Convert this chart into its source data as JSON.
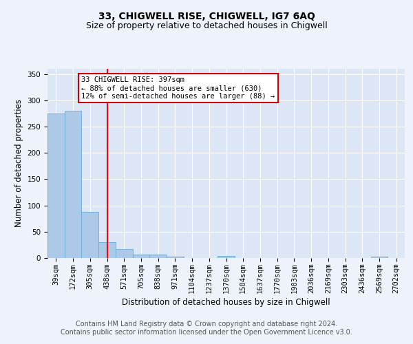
{
  "title": "33, CHIGWELL RISE, CHIGWELL, IG7 6AQ",
  "subtitle": "Size of property relative to detached houses in Chigwell",
  "xlabel": "Distribution of detached houses by size in Chigwell",
  "ylabel": "Number of detached properties",
  "categories": [
    "39sqm",
    "172sqm",
    "305sqm",
    "438sqm",
    "571sqm",
    "705sqm",
    "838sqm",
    "971sqm",
    "1104sqm",
    "1237sqm",
    "1370sqm",
    "1504sqm",
    "1637sqm",
    "1770sqm",
    "1903sqm",
    "2036sqm",
    "2169sqm",
    "2303sqm",
    "2436sqm",
    "2569sqm",
    "2702sqm"
  ],
  "values": [
    275,
    280,
    88,
    30,
    17,
    7,
    6,
    3,
    0,
    0,
    4,
    0,
    0,
    0,
    0,
    0,
    0,
    0,
    0,
    2,
    0
  ],
  "bar_color": "#adc9e8",
  "bar_edge_color": "#6aaad4",
  "red_line_x": 3.0,
  "annotation_text": "33 CHIGWELL RISE: 397sqm\n← 88% of detached houses are smaller (630)\n12% of semi-detached houses are larger (88) →",
  "annotation_box_color": "#ffffff",
  "annotation_box_edge_color": "#cc0000",
  "footer_line1": "Contains HM Land Registry data © Crown copyright and database right 2024.",
  "footer_line2": "Contains public sector information licensed under the Open Government Licence v3.0.",
  "ylim": [
    0,
    360
  ],
  "yticks": [
    0,
    50,
    100,
    150,
    200,
    250,
    300,
    350
  ],
  "title_fontsize": 10,
  "subtitle_fontsize": 9,
  "axis_label_fontsize": 8.5,
  "tick_fontsize": 7.5,
  "annotation_fontsize": 7.5,
  "footer_fontsize": 7,
  "background_color": "#eef2fa",
  "plot_bg_color": "#dce6f5"
}
